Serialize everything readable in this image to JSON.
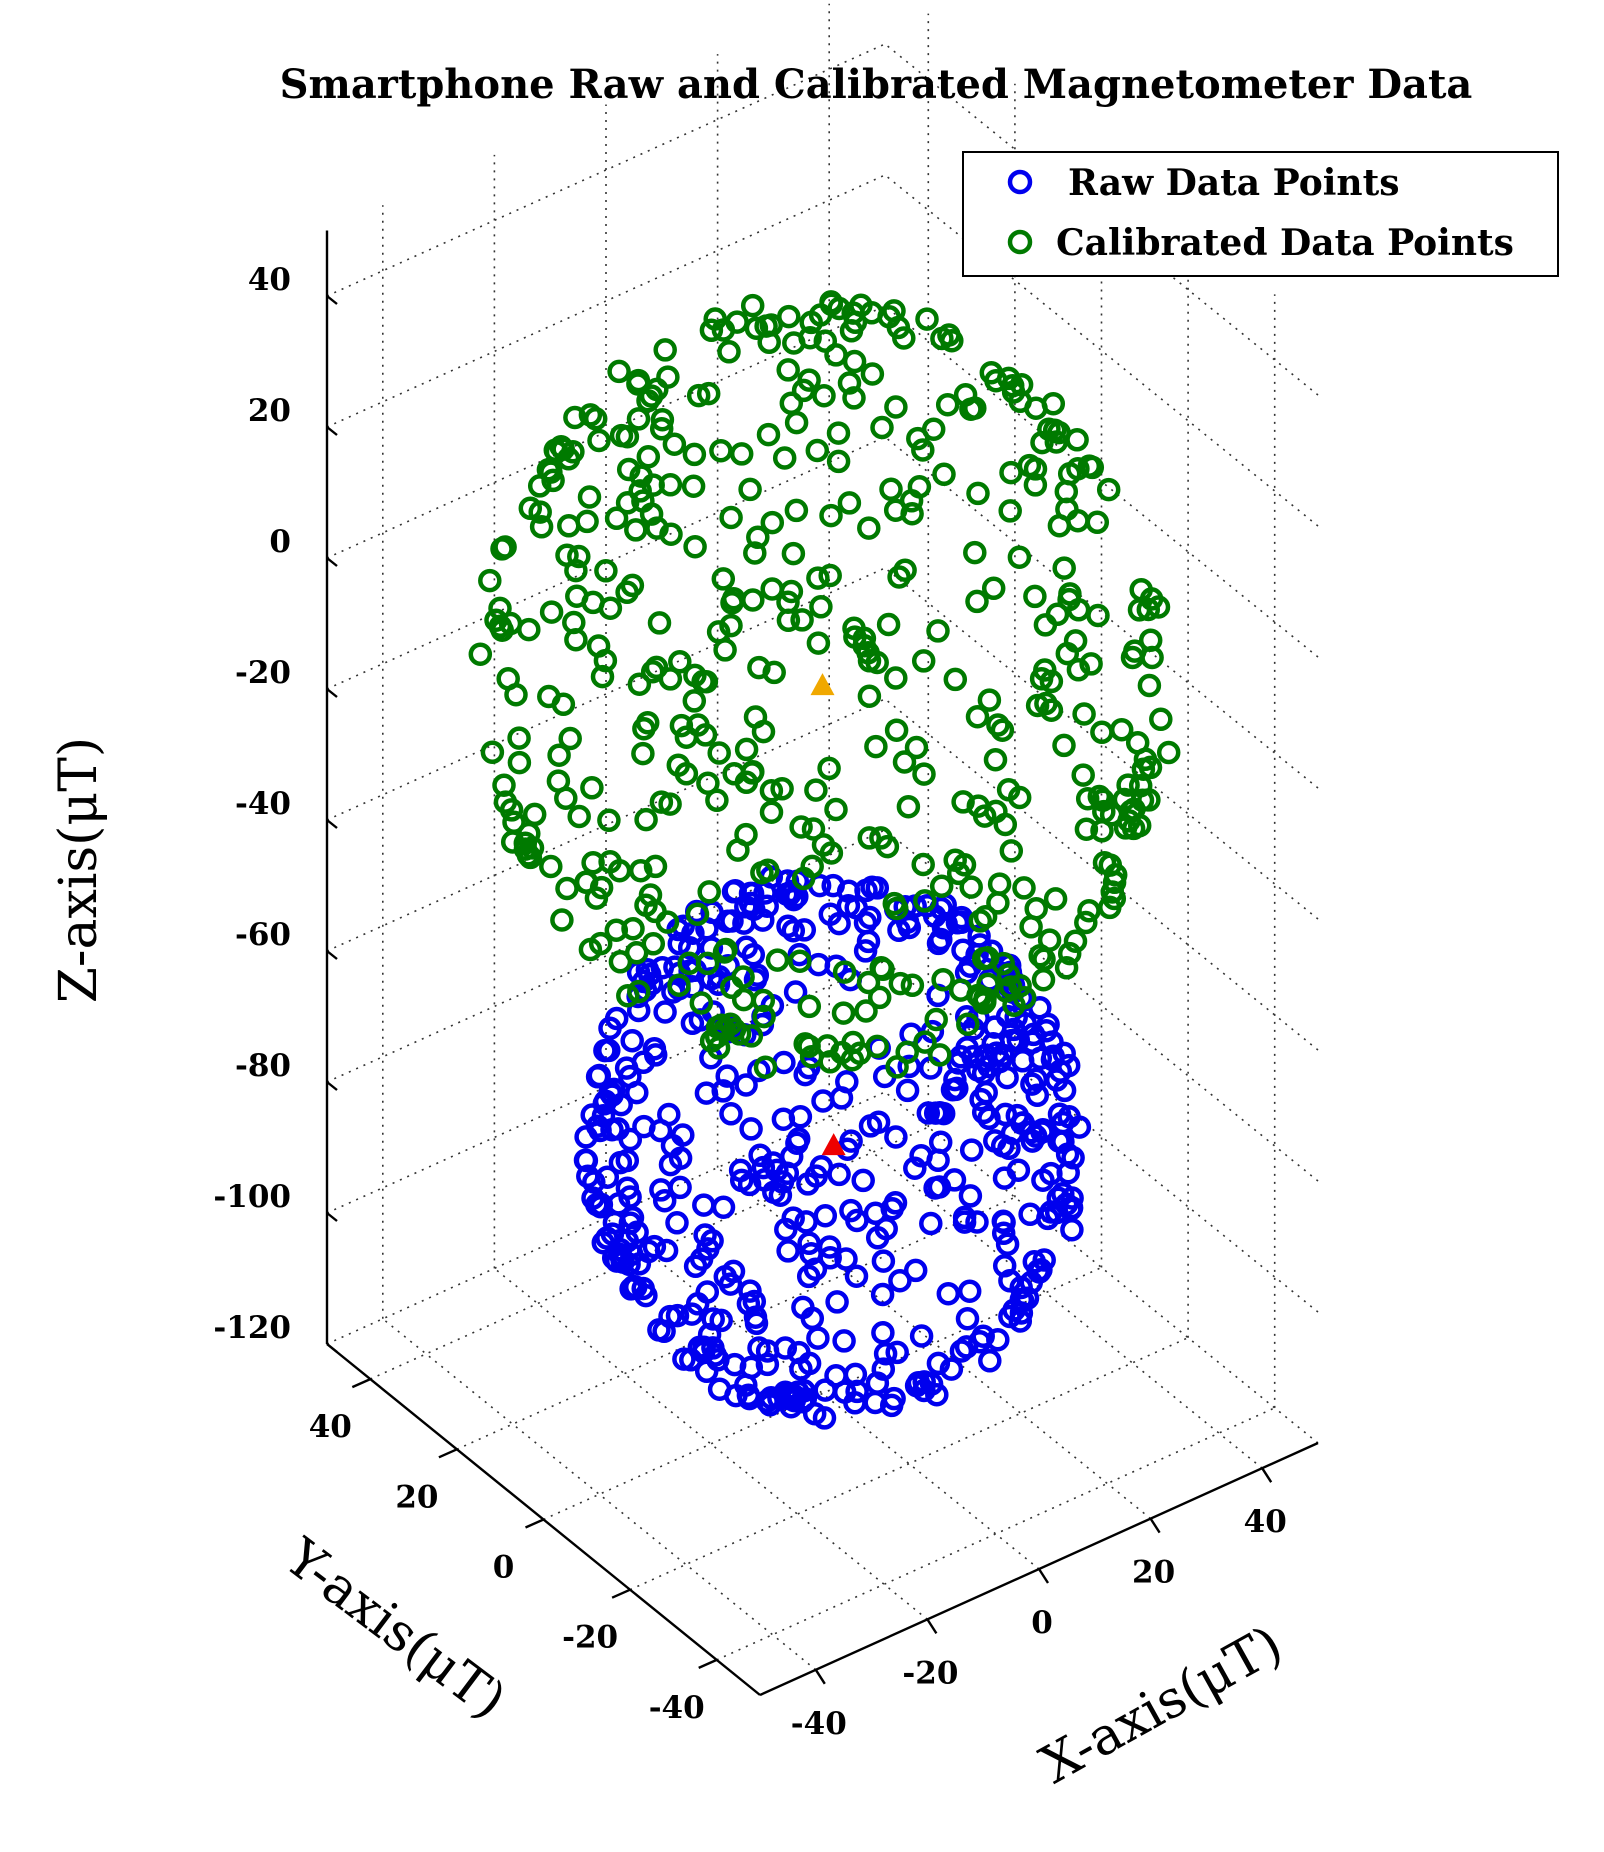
{
  "chart_data": {
    "type": "scatter",
    "dimensions": 3,
    "title": "Smartphone Raw and Calibrated Magnetometer Data",
    "xlabel": "X-axis(μT)",
    "ylabel": "Y-axis(μT)",
    "zlabel": "Z-axis(μT)",
    "xlim": [
      -50,
      50
    ],
    "ylim": [
      -50,
      50
    ],
    "zlim": [
      -120,
      50
    ],
    "x_ticks": [
      "-40",
      "-20",
      "0",
      "20",
      "40"
    ],
    "y_ticks": [
      "-40",
      "-20",
      "0",
      "20",
      "40"
    ],
    "z_ticks": [
      "40",
      "20",
      "0",
      "-20",
      "-40",
      "-60",
      "-80",
      "-100",
      "-120"
    ],
    "grid": true,
    "legend": "top-right",
    "series": [
      {
        "name": "Raw Data Points",
        "color": "#0000ee",
        "marker": "open-circle",
        "approx_point_count": 500,
        "distribution": "sphere",
        "center": [
          2,
          0,
          -83
        ],
        "radius": 34
      },
      {
        "name": "Calibrated Data Points",
        "color": "#007a00",
        "marker": "open-circle",
        "approx_point_count": 500,
        "distribution": "sphere",
        "center": [
          0,
          0,
          -12
        ],
        "radius": 48
      }
    ],
    "center_markers": [
      {
        "series": "Raw Data Points",
        "color": "#ee0000",
        "marker": "filled-triangle",
        "x": 2,
        "y": 0,
        "z": -83
      },
      {
        "series": "Calibrated Data Points",
        "color": "#f0a800",
        "marker": "filled-triangle",
        "x": 0,
        "y": 0,
        "z": -12
      }
    ]
  }
}
